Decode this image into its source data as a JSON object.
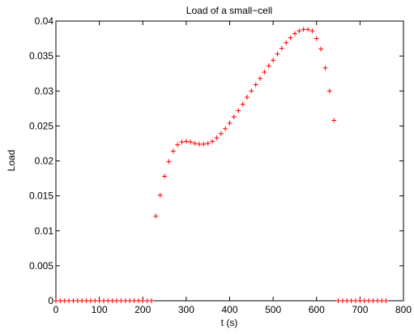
{
  "chart_data": {
    "type": "scatter",
    "title": "Load of a small−cell",
    "xlabel": "t (s)",
    "ylabel": "Load",
    "xlim": [
      0,
      800
    ],
    "ylim": [
      0,
      0.04
    ],
    "xticks": [
      0,
      100,
      200,
      300,
      400,
      500,
      600,
      700,
      800
    ],
    "yticks": [
      0,
      0.005,
      0.01,
      0.015,
      0.02,
      0.025,
      0.03,
      0.035,
      0.04
    ],
    "xtick_labels": [
      "0",
      "100",
      "200",
      "300",
      "400",
      "500",
      "600",
      "700",
      "800"
    ],
    "ytick_labels": [
      "0",
      "0.005",
      "0.01",
      "0.015",
      "0.02",
      "0.025",
      "0.03",
      "0.035",
      "0.04"
    ],
    "grid": false,
    "marker": "+",
    "marker_color": "#ff0000",
    "series": [
      {
        "x": [
          0,
          10,
          20,
          30,
          40,
          50,
          60,
          70,
          80,
          90,
          100,
          110,
          120,
          130,
          140,
          150,
          160,
          170,
          180,
          190,
          200,
          210,
          220,
          230,
          240,
          250,
          260,
          270,
          280,
          290,
          300,
          310,
          320,
          330,
          340,
          350,
          360,
          370,
          380,
          390,
          400,
          410,
          420,
          430,
          440,
          450,
          460,
          470,
          480,
          490,
          500,
          510,
          520,
          530,
          540,
          550,
          560,
          570,
          580,
          590,
          600,
          610,
          620,
          630,
          640,
          650,
          660,
          670,
          680,
          690,
          700,
          710,
          720,
          730,
          740,
          750,
          760
        ],
        "y": [
          0,
          0,
          0,
          0,
          0,
          0,
          0,
          0,
          0,
          0,
          0,
          0,
          0,
          0,
          0,
          0,
          0,
          0,
          0,
          0,
          0,
          0,
          0,
          0.0121,
          0.0151,
          0.0178,
          0.0199,
          0.0214,
          0.0223,
          0.0227,
          0.0228,
          0.0227,
          0.0225,
          0.0224,
          0.0224,
          0.0225,
          0.0228,
          0.0233,
          0.0239,
          0.0246,
          0.0254,
          0.0263,
          0.0272,
          0.0281,
          0.0291,
          0.03,
          0.0309,
          0.0318,
          0.0327,
          0.0336,
          0.0344,
          0.0353,
          0.0361,
          0.0369,
          0.0376,
          0.0382,
          0.0386,
          0.0388,
          0.0388,
          0.0386,
          0.0375,
          0.036,
          0.0333,
          0.03,
          0.0258,
          0,
          0,
          0,
          0,
          0,
          0,
          0,
          0,
          0,
          0,
          0,
          0
        ]
      }
    ]
  }
}
